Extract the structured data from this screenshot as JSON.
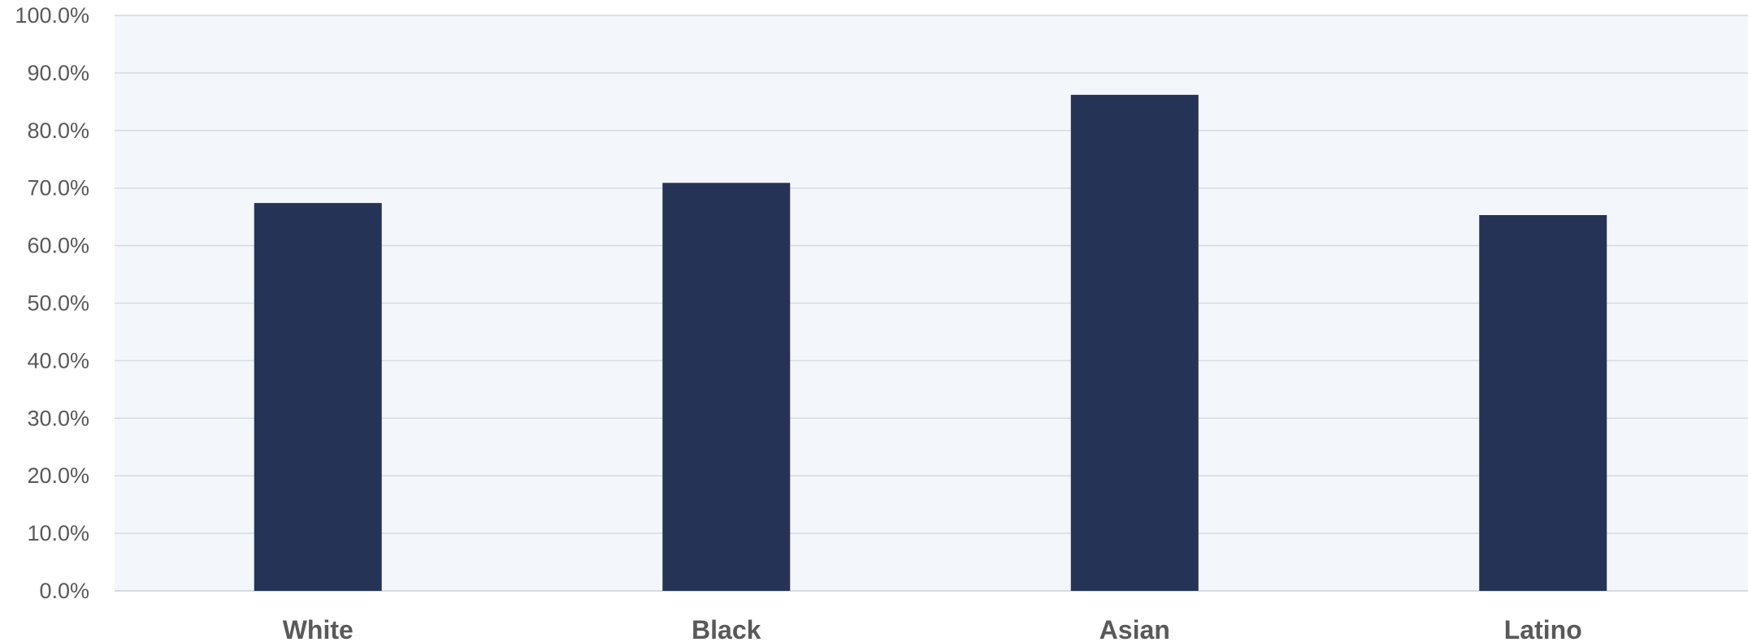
{
  "chart_data": {
    "type": "bar",
    "categories": [
      "White",
      "Black",
      "Asian",
      "Latino"
    ],
    "values": [
      67.4,
      70.9,
      86.2,
      65.3
    ],
    "ylim": [
      0,
      100
    ],
    "yticks": [
      0,
      10,
      20,
      30,
      40,
      50,
      60,
      70,
      80,
      90,
      100
    ],
    "ytick_labels": [
      "0.0%",
      "10.0%",
      "20.0%",
      "30.0%",
      "40.0%",
      "50.0%",
      "60.0%",
      "70.0%",
      "80.0%",
      "90.0%",
      "100.0%"
    ],
    "title": "",
    "xlabel": "",
    "ylabel": "",
    "grid": true,
    "legend": "none",
    "colors": {
      "bar": "#243356",
      "plot_background": "#f3f6fb",
      "gridline": "#d5dbe3",
      "axis_text": "#595959"
    }
  }
}
